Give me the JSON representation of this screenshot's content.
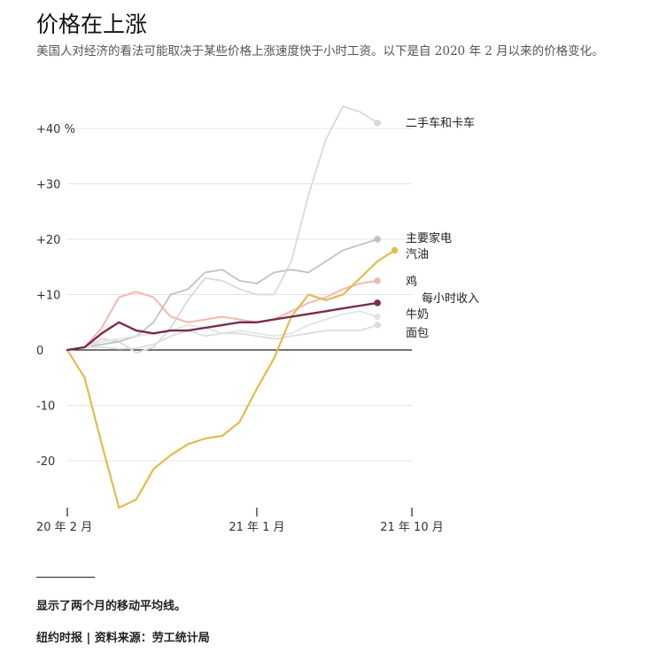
{
  "header": {
    "title": "价格在上涨",
    "subtitle": "美国人对经济的看法可能取决于某些价格上涨速度快于小时工资。以下是自 2020 年 2 月以来的价格变化。"
  },
  "footer": {
    "note": "显示了两个月的移动平均线。",
    "source": "纽约时报 | 资料来源：劳工统计局"
  },
  "chart_data": {
    "type": "line",
    "title": "价格在上涨",
    "x": [
      "20-02",
      "20-03",
      "20-04",
      "20-05",
      "20-06",
      "20-07",
      "20-08",
      "20-09",
      "20-10",
      "20-11",
      "20-12",
      "21-01",
      "21-02",
      "21-03",
      "21-04",
      "21-05",
      "21-06",
      "21-07",
      "21-08",
      "21-09",
      "21-10"
    ],
    "x_ticks": [
      {
        "index": 0,
        "label": "20 年 2 月"
      },
      {
        "index": 11,
        "label": "21 年 1 月"
      },
      {
        "index": 20,
        "label": "21 年 10 月"
      }
    ],
    "y_ticks": [
      {
        "value": 40,
        "label": "+40 %"
      },
      {
        "value": 30,
        "label": "+30"
      },
      {
        "value": 20,
        "label": "+20"
      },
      {
        "value": 10,
        "label": "+10"
      },
      {
        "value": 0,
        "label": "0"
      },
      {
        "value": -10,
        "label": "-10"
      },
      {
        "value": -20,
        "label": "-20"
      }
    ],
    "ylim": [
      -29,
      44
    ],
    "grid": "horizontal",
    "series": [
      {
        "name": "二手车和卡车",
        "color": "#d9d9d9",
        "width": 1.8,
        "values": [
          0,
          0.5,
          2,
          1.5,
          -0.5,
          0.5,
          4,
          9,
          13,
          12.5,
          11,
          10,
          10,
          16,
          28,
          38,
          44,
          43,
          41,
          null,
          null
        ]
      },
      {
        "name": "主要家电",
        "color": "#bcc3c6",
        "width": 1.8,
        "values": [
          0,
          0.5,
          1,
          1.5,
          2.5,
          5,
          10,
          11,
          14,
          14.5,
          12.5,
          12,
          14,
          14.5,
          14,
          16,
          18,
          19,
          20,
          null,
          null
        ]
      },
      {
        "name": "面包",
        "color": "#dddddd",
        "width": 1.8,
        "values": [
          0,
          0.5,
          0.5,
          0.2,
          0.3,
          1,
          2.5,
          3.5,
          2.5,
          3,
          3,
          2.5,
          2,
          2.5,
          3,
          3.5,
          3.5,
          3.5,
          4.5,
          null,
          null
        ]
      },
      {
        "name": "牛奶",
        "color": "#e3e3e3",
        "width": 1.8,
        "values": [
          0,
          0.5,
          1.5,
          2,
          2.5,
          3,
          3.5,
          4.5,
          4,
          3,
          3.5,
          3,
          2.5,
          3,
          4.5,
          5.5,
          6.5,
          7,
          6,
          null,
          null
        ]
      },
      {
        "name": "鸡",
        "color": "#f2b9ab",
        "width": 2,
        "values": [
          0,
          0.5,
          4,
          9.5,
          10.5,
          9.5,
          6,
          5,
          5.5,
          6,
          5.5,
          5,
          5.5,
          7,
          8.5,
          9.5,
          11,
          12,
          12.5,
          null,
          null
        ]
      },
      {
        "name": "汽油",
        "color": "#e3bb4f",
        "width": 2.2,
        "values": [
          0,
          -5,
          -17,
          -28.5,
          -27,
          -21.5,
          -19,
          -17,
          -16,
          -15.5,
          -13,
          -7,
          -1.5,
          6,
          10,
          9,
          10,
          13,
          16,
          18,
          null
        ]
      },
      {
        "name": "每小时收入",
        "color": "#7c2b48",
        "width": 2.4,
        "values": [
          0,
          0.5,
          3,
          5,
          3.5,
          3,
          3.5,
          3.5,
          4,
          4.5,
          5,
          5,
          5.5,
          6,
          6.5,
          7,
          7.5,
          8,
          8.5,
          null,
          null
        ]
      }
    ],
    "labels": [
      {
        "series": "二手车和卡车",
        "text": "二手车和卡车"
      },
      {
        "series": "主要家电",
        "text": "主要家电"
      },
      {
        "series": "汽油",
        "text": "汽油"
      },
      {
        "series": "鸡",
        "text": "鸡"
      },
      {
        "series": "每小时收入",
        "text": "每小时收入"
      },
      {
        "series": "牛奶",
        "text": "牛奶"
      },
      {
        "series": "面包",
        "text": "面包"
      }
    ]
  }
}
